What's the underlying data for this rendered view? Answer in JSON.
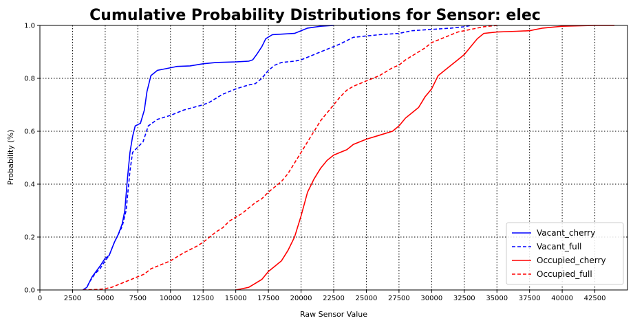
{
  "chart_data": {
    "type": "line",
    "title": "Cumulative Probability Distributions for Sensor: elec",
    "xlabel": "Raw Sensor Value",
    "ylabel": "Probability (%)",
    "xlim": [
      0,
      45000
    ],
    "ylim": [
      0,
      1.0
    ],
    "x_ticks": [
      0,
      2500,
      5000,
      7500,
      10000,
      12500,
      15000,
      17500,
      20000,
      22500,
      25000,
      27500,
      30000,
      32500,
      35000,
      37500,
      40000,
      42500
    ],
    "x_tick_labels": [
      "0",
      "2500",
      "5000",
      "7500",
      "10000",
      "12500",
      "15000",
      "17500",
      "20000",
      "22500",
      "25000",
      "27500",
      "30000",
      "32500",
      "35000",
      "37500",
      "40000",
      "42500"
    ],
    "y_ticks": [
      0.0,
      0.2,
      0.4,
      0.6,
      0.8,
      1.0
    ],
    "y_tick_labels": [
      "0.0",
      "0.2",
      "0.4",
      "0.6",
      "0.8",
      "1.0"
    ],
    "grid": "dotted",
    "legend_position": "lower-right",
    "series": [
      {
        "name": "Vacant_cherry",
        "color": "#0000ff",
        "style": "solid",
        "points": [
          [
            3300,
            0
          ],
          [
            3600,
            0.01
          ],
          [
            3800,
            0.03
          ],
          [
            4000,
            0.05
          ],
          [
            4300,
            0.07
          ],
          [
            4600,
            0.09
          ],
          [
            5000,
            0.12
          ],
          [
            5300,
            0.13
          ],
          [
            5700,
            0.18
          ],
          [
            6000,
            0.21
          ],
          [
            6300,
            0.25
          ],
          [
            6500,
            0.3
          ],
          [
            6700,
            0.42
          ],
          [
            6900,
            0.52
          ],
          [
            7100,
            0.58
          ],
          [
            7300,
            0.62
          ],
          [
            7700,
            0.63
          ],
          [
            8000,
            0.68
          ],
          [
            8200,
            0.75
          ],
          [
            8500,
            0.81
          ],
          [
            9000,
            0.83
          ],
          [
            9500,
            0.835
          ],
          [
            10000,
            0.84
          ],
          [
            10500,
            0.845
          ],
          [
            11500,
            0.847
          ],
          [
            12500,
            0.855
          ],
          [
            13500,
            0.86
          ],
          [
            15000,
            0.862
          ],
          [
            16000,
            0.865
          ],
          [
            16300,
            0.87
          ],
          [
            16600,
            0.89
          ],
          [
            17000,
            0.92
          ],
          [
            17300,
            0.95
          ],
          [
            17800,
            0.965
          ],
          [
            18500,
            0.967
          ],
          [
            19500,
            0.97
          ],
          [
            20000,
            0.98
          ],
          [
            20500,
            0.99
          ],
          [
            21500,
            0.997
          ],
          [
            22500,
            1.0
          ]
        ]
      },
      {
        "name": "Vacant_full",
        "color": "#0000ff",
        "style": "dashed",
        "points": [
          [
            3300,
            0
          ],
          [
            3600,
            0.01
          ],
          [
            3800,
            0.03
          ],
          [
            4200,
            0.06
          ],
          [
            4600,
            0.08
          ],
          [
            5000,
            0.11
          ],
          [
            5300,
            0.13
          ],
          [
            5700,
            0.18
          ],
          [
            6000,
            0.21
          ],
          [
            6300,
            0.24
          ],
          [
            6600,
            0.3
          ],
          [
            6900,
            0.45
          ],
          [
            7100,
            0.52
          ],
          [
            7500,
            0.54
          ],
          [
            7900,
            0.56
          ],
          [
            8300,
            0.62
          ],
          [
            9000,
            0.645
          ],
          [
            10000,
            0.66
          ],
          [
            11000,
            0.68
          ],
          [
            12500,
            0.7
          ],
          [
            13000,
            0.71
          ],
          [
            14000,
            0.74
          ],
          [
            15000,
            0.76
          ],
          [
            16000,
            0.775
          ],
          [
            16500,
            0.78
          ],
          [
            17000,
            0.8
          ],
          [
            17500,
            0.83
          ],
          [
            18000,
            0.85
          ],
          [
            18500,
            0.86
          ],
          [
            19500,
            0.865
          ],
          [
            20000,
            0.87
          ],
          [
            21000,
            0.89
          ],
          [
            22000,
            0.91
          ],
          [
            23000,
            0.93
          ],
          [
            24000,
            0.955
          ],
          [
            25000,
            0.96
          ],
          [
            26000,
            0.965
          ],
          [
            27500,
            0.97
          ],
          [
            28500,
            0.98
          ],
          [
            30000,
            0.985
          ],
          [
            31500,
            0.99
          ],
          [
            32500,
            0.995
          ],
          [
            33000,
            1.0
          ]
        ]
      },
      {
        "name": "Occupied_cherry",
        "color": "#ff0000",
        "style": "solid",
        "points": [
          [
            15000,
            0
          ],
          [
            15500,
            0.005
          ],
          [
            16000,
            0.01
          ],
          [
            16500,
            0.025
          ],
          [
            17000,
            0.04
          ],
          [
            17500,
            0.07
          ],
          [
            18000,
            0.09
          ],
          [
            18500,
            0.11
          ],
          [
            19000,
            0.15
          ],
          [
            19500,
            0.2
          ],
          [
            20000,
            0.28
          ],
          [
            20500,
            0.37
          ],
          [
            21000,
            0.42
          ],
          [
            21500,
            0.46
          ],
          [
            22000,
            0.49
          ],
          [
            22500,
            0.51
          ],
          [
            23000,
            0.52
          ],
          [
            23500,
            0.53
          ],
          [
            24000,
            0.55
          ],
          [
            24500,
            0.56
          ],
          [
            25000,
            0.57
          ],
          [
            26000,
            0.585
          ],
          [
            27000,
            0.6
          ],
          [
            27500,
            0.62
          ],
          [
            28000,
            0.65
          ],
          [
            28500,
            0.67
          ],
          [
            29000,
            0.69
          ],
          [
            29500,
            0.73
          ],
          [
            30000,
            0.76
          ],
          [
            30500,
            0.81
          ],
          [
            31000,
            0.83
          ],
          [
            31500,
            0.85
          ],
          [
            32000,
            0.87
          ],
          [
            32500,
            0.89
          ],
          [
            33000,
            0.92
          ],
          [
            33500,
            0.95
          ],
          [
            34000,
            0.97
          ],
          [
            35000,
            0.975
          ],
          [
            36500,
            0.978
          ],
          [
            37500,
            0.98
          ],
          [
            38500,
            0.99
          ],
          [
            40000,
            0.997
          ],
          [
            42500,
            1.0
          ],
          [
            44000,
            1.0
          ]
        ]
      },
      {
        "name": "Occupied_full",
        "color": "#ff0000",
        "style": "dashed",
        "points": [
          [
            3300,
            0
          ],
          [
            4500,
            0.002
          ],
          [
            5000,
            0.005
          ],
          [
            5500,
            0.01
          ],
          [
            6000,
            0.02
          ],
          [
            6500,
            0.03
          ],
          [
            7000,
            0.04
          ],
          [
            7500,
            0.05
          ],
          [
            8000,
            0.06
          ],
          [
            8500,
            0.08
          ],
          [
            9000,
            0.09
          ],
          [
            10000,
            0.11
          ],
          [
            11000,
            0.14
          ],
          [
            12000,
            0.165
          ],
          [
            12500,
            0.18
          ],
          [
            13000,
            0.2
          ],
          [
            13500,
            0.22
          ],
          [
            14000,
            0.235
          ],
          [
            14500,
            0.26
          ],
          [
            15000,
            0.275
          ],
          [
            15500,
            0.29
          ],
          [
            16000,
            0.31
          ],
          [
            16500,
            0.33
          ],
          [
            17000,
            0.345
          ],
          [
            17500,
            0.37
          ],
          [
            18000,
            0.39
          ],
          [
            18500,
            0.41
          ],
          [
            19000,
            0.44
          ],
          [
            19500,
            0.48
          ],
          [
            20000,
            0.52
          ],
          [
            20500,
            0.56
          ],
          [
            21000,
            0.6
          ],
          [
            21500,
            0.64
          ],
          [
            22000,
            0.67
          ],
          [
            22500,
            0.7
          ],
          [
            23000,
            0.73
          ],
          [
            23500,
            0.755
          ],
          [
            24000,
            0.77
          ],
          [
            24500,
            0.78
          ],
          [
            25000,
            0.79
          ],
          [
            25500,
            0.8
          ],
          [
            26000,
            0.81
          ],
          [
            26500,
            0.825
          ],
          [
            27000,
            0.84
          ],
          [
            27500,
            0.85
          ],
          [
            28000,
            0.87
          ],
          [
            28500,
            0.885
          ],
          [
            29000,
            0.9
          ],
          [
            29500,
            0.915
          ],
          [
            30000,
            0.935
          ],
          [
            30500,
            0.945
          ],
          [
            31000,
            0.955
          ],
          [
            31500,
            0.965
          ],
          [
            32000,
            0.975
          ],
          [
            33000,
            0.985
          ],
          [
            34000,
            0.995
          ],
          [
            35000,
            1.0
          ]
        ]
      }
    ]
  }
}
